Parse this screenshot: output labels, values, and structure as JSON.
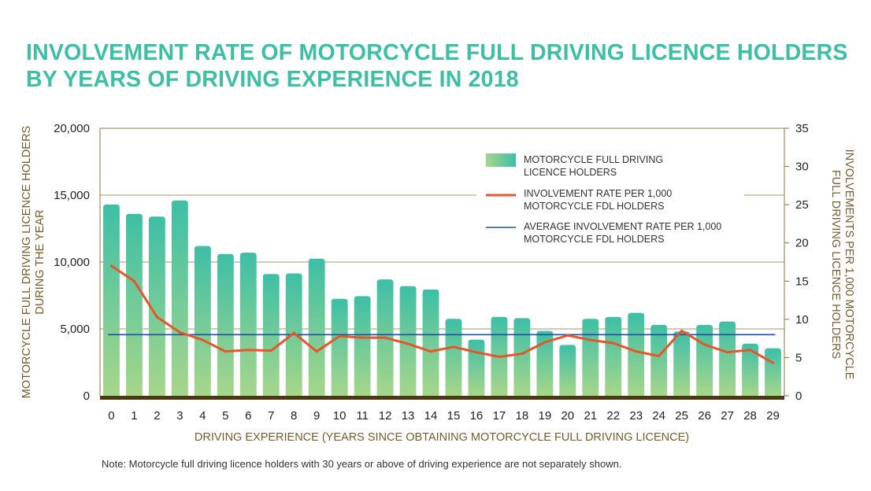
{
  "title": {
    "line1": "INVOLVEMENT RATE OF MOTORCYCLE FULL DRIVING LICENCE HOLDERS",
    "line2": "BY YEARS OF DRIVING EXPERIENCE IN 2018"
  },
  "note": "Note: Motorcycle full driving licence holders with 30 years or above of driving experience are not separately shown.",
  "colors": {
    "title": "#3cbfa4",
    "bar_top": "#3dbfa6",
    "bar_bottom": "#a7d68b",
    "rate_line": "#e8552b",
    "average_line": "#1f4e9c",
    "axis_text": "#7a5a2a",
    "grid": "#8c7340"
  },
  "chart_data": {
    "type": "bar",
    "categories": [
      "0",
      "1",
      "2",
      "3",
      "4",
      "5",
      "6",
      "7",
      "8",
      "9",
      "10",
      "11",
      "12",
      "13",
      "14",
      "15",
      "16",
      "17",
      "18",
      "19",
      "20",
      "21",
      "22",
      "23",
      "24",
      "25",
      "26",
      "27",
      "28",
      "29"
    ],
    "series": [
      {
        "name_lines": [
          "MOTORCYCLE FULL DRIVING",
          "LICENCE HOLDERS"
        ],
        "type": "bar",
        "axis": "left",
        "values": [
          14300,
          13600,
          13400,
          14600,
          11200,
          10600,
          10700,
          9100,
          9150,
          10250,
          7250,
          7450,
          8700,
          8200,
          7950,
          5750,
          4200,
          5900,
          5800,
          4850,
          3800,
          5750,
          5900,
          6200,
          5300,
          4800,
          5300,
          5550,
          3900,
          3550
        ]
      },
      {
        "name_lines": [
          "INVOLVEMENT RATE PER 1,000",
          "MOTORCYCLE FDL HOLDERS"
        ],
        "type": "line",
        "axis": "right",
        "values": [
          17,
          15,
          10.3,
          8.3,
          7.3,
          5.8,
          6,
          5.9,
          8.2,
          5.8,
          7.8,
          7.6,
          7.6,
          6.8,
          5.8,
          6.4,
          5.7,
          5.1,
          5.5,
          7,
          7.9,
          7.3,
          6.9,
          5.8,
          5.2,
          8.5,
          6.7,
          5.7,
          6,
          4.3
        ]
      },
      {
        "name_lines": [
          "AVERAGE INVOLVEMENT RATE PER 1,000",
          "MOTORCYCLE FDL HOLDERS"
        ],
        "type": "line",
        "axis": "right",
        "values": [
          8,
          8,
          8,
          8,
          8,
          8,
          8,
          8,
          8,
          8,
          8,
          8,
          8,
          8,
          8,
          8,
          8,
          8,
          8,
          8,
          8,
          8,
          8,
          8,
          8,
          8,
          8,
          8,
          8,
          8
        ]
      }
    ],
    "xlabel": "DRIVING EXPERIENCE (YEARS SINCE OBTAINING MOTORCYCLE FULL DRIVING LICENCE)",
    "ylabel_left_lines": [
      "MOTORCYCLE FULL DRIVING LICENCE HOLDERS",
      "DURING THE YEAR"
    ],
    "ylabel_right_lines": [
      "INVOLVEMENTS PER 1,000 MOTORCYCLE",
      "FULL DRIVING LICENCE HOLDERS"
    ],
    "ylim_left": [
      0,
      20000
    ],
    "ylim_right": [
      0,
      35
    ],
    "yticks_left": [
      "0",
      "5,000",
      "10,000",
      "15,000",
      "20,000"
    ],
    "yticks_left_values": [
      0,
      5000,
      10000,
      15000,
      20000
    ],
    "yticks_right": [
      "0",
      "5",
      "10",
      "15",
      "20",
      "25",
      "30",
      "35"
    ],
    "yticks_right_values": [
      0,
      5,
      10,
      15,
      20,
      25,
      30,
      35
    ],
    "grid": true,
    "legend_position": "top-right"
  }
}
